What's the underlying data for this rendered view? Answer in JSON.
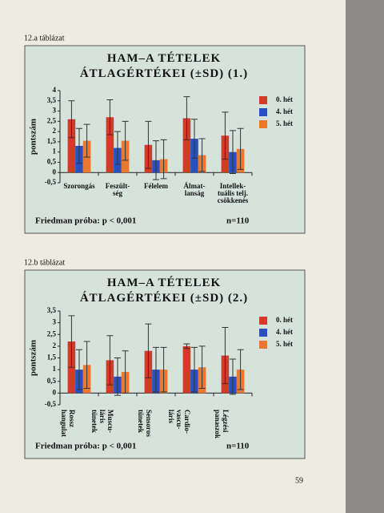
{
  "page_number": "59",
  "chart_data": [
    {
      "type": "bar",
      "label": "12.a táblázat",
      "title": "HAM–A TÉTELEK\nÁTLAGÉRTÉKEI (±SD) (1.)",
      "ylabel": "pontszám",
      "categories": [
        "Szorongás",
        "Feszült-\nség",
        "Félelem",
        "Álmat-\nlanság",
        "Intellek-\ntuális telj.\ncsökkenés"
      ],
      "series": [
        {
          "name": "0. hét",
          "color": "#d23a2a",
          "values": [
            2.6,
            2.7,
            1.35,
            2.65,
            1.8
          ],
          "errors": [
            0.9,
            0.85,
            1.15,
            1.05,
            1.15
          ]
        },
        {
          "name": "4. hét",
          "color": "#2a4fbf",
          "values": [
            1.3,
            1.2,
            0.6,
            1.65,
            1.0
          ],
          "errors": [
            0.85,
            0.8,
            0.95,
            0.95,
            1.05
          ]
        },
        {
          "name": "5. hét",
          "color": "#e87a30",
          "values": [
            1.55,
            1.55,
            0.65,
            0.85,
            1.15
          ],
          "errors": [
            0.8,
            0.95,
            0.95,
            0.8,
            1.0
          ]
        }
      ],
      "ylim": [
        -0.5,
        4
      ],
      "yticks": [
        {
          "value": -0.5,
          "label": "-0,5"
        },
        0,
        {
          "value": 0.5,
          "label": "0,5"
        },
        1,
        {
          "value": 1.5,
          "label": "1,5"
        },
        2,
        {
          "value": 2.5,
          "label": "2,5"
        },
        3,
        {
          "value": 3.5,
          "label": "3,5"
        },
        4
      ],
      "annotation": "Friedman próba:  p < 0,001",
      "n": "n=110",
      "rotate_labels": false
    },
    {
      "type": "bar",
      "label": "12.b táblázat",
      "title": "HAM–A TÉTELEK\nÁTLAGÉRTÉKEI (±SD) (2.)",
      "ylabel": "pontszám",
      "categories": [
        "Rossz\nhangulat",
        "Muscu-\nláris\ntünetek",
        "Sensoros\ntünetek",
        "Cardio-\nvascu-\nláris",
        "Légzési\npanaszok"
      ],
      "series": [
        {
          "name": "0. hét",
          "color": "#d23a2a",
          "values": [
            2.2,
            1.4,
            1.8,
            2.0,
            1.6
          ],
          "errors": [
            1.1,
            1.05,
            1.15,
            0.1,
            1.2
          ]
        },
        {
          "name": "4. hét",
          "color": "#2a4fbf",
          "values": [
            1.0,
            0.7,
            1.0,
            1.0,
            0.7
          ],
          "errors": [
            0.85,
            0.8,
            0.95,
            0.95,
            0.75
          ]
        },
        {
          "name": "5. hét",
          "color": "#e87a30",
          "values": [
            1.2,
            0.9,
            1.0,
            1.1,
            1.0
          ],
          "errors": [
            1.0,
            0.9,
            0.95,
            0.9,
            0.85
          ]
        }
      ],
      "ylim": [
        -0.5,
        3.5
      ],
      "yticks": [
        {
          "value": -0.5,
          "label": "-0,5"
        },
        0,
        {
          "value": 0.5,
          "label": "0,5"
        },
        1,
        {
          "value": 1.5,
          "label": "1,5"
        },
        2,
        {
          "value": 2.5,
          "label": "2,5"
        },
        3,
        {
          "value": 3.5,
          "label": "3,5"
        }
      ],
      "annotation": "Friedman próba:  p < 0,001",
      "n": "n=110",
      "rotate_labels": true
    }
  ]
}
